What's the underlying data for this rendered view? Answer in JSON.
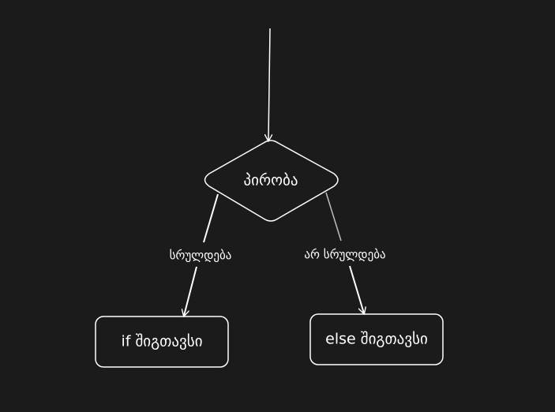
{
  "diagram": {
    "decision": {
      "label": "პირობა"
    },
    "branch_true": {
      "edge_label": "სრულდება",
      "box_label": "if შიგთავსი"
    },
    "branch_false": {
      "edge_label": "არ სრულდება",
      "box_label": "else შიგთავსი"
    }
  },
  "colors": {
    "background": "#1b1b1b",
    "stroke": "#ffffff",
    "text": "#ffffff"
  }
}
